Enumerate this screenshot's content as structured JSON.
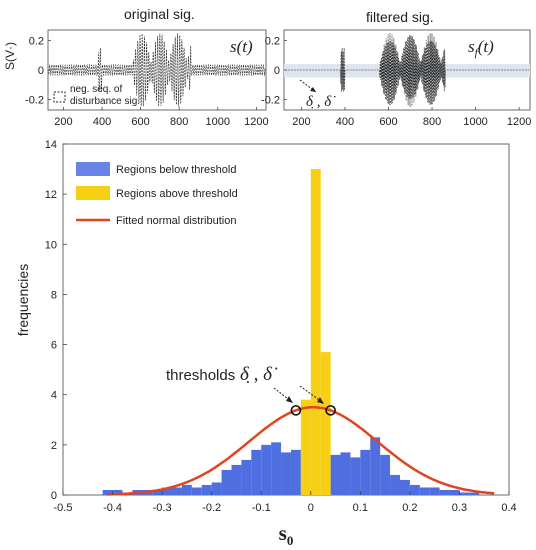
{
  "chart_data": [
    {
      "type": "line",
      "title": "original sig.",
      "ylabel": "S(V·)",
      "xlim": [
        120,
        1250
      ],
      "ylim": [
        -0.27,
        0.27
      ],
      "x_ticks": [
        200,
        400,
        600,
        800,
        1000,
        1200
      ],
      "y_ticks": [
        0.2,
        0,
        -0.2
      ],
      "y_tick_labels": [
        "0.2",
        "0",
        "-0.2"
      ],
      "signal_label": "s(t)",
      "legend": "neg. seq. of disturbance sig."
    },
    {
      "type": "line",
      "title": "filtered sig.",
      "xlim": [
        120,
        1250
      ],
      "ylim": [
        -0.27,
        0.27
      ],
      "x_ticks": [
        200,
        400,
        600,
        800,
        1000,
        1200
      ],
      "y_ticks": [
        0.2,
        0,
        -0.2
      ],
      "y_tick_labels": [
        "0.2",
        "0",
        "-0.2"
      ],
      "signal_label": "s_f(t)",
      "band": [
        -0.05,
        0.04
      ],
      "annotation": "δ̣ , δ̇"
    },
    {
      "type": "bar",
      "xlabel": "s₀",
      "ylabel": "frequencies",
      "xlim": [
        -0.5,
        0.4
      ],
      "ylim": [
        0,
        14
      ],
      "x_ticks": [
        -0.5,
        -0.4,
        -0.3,
        -0.2,
        -0.1,
        0,
        0.1,
        0.2,
        0.3,
        0.4
      ],
      "x_tick_labels": [
        "-0.5",
        "-0.4",
        "-0.3",
        "-0.2",
        "-0.1",
        "0",
        "0.1",
        "0.2",
        "0.3",
        "0.4"
      ],
      "y_ticks": [
        0,
        2,
        4,
        6,
        8,
        10,
        12,
        14
      ],
      "bin_width": 0.02,
      "series": [
        {
          "name": "Regions below threshold",
          "color": "#4f6fe0",
          "bins_left": [
            -0.42,
            -0.4,
            -0.38,
            -0.36,
            -0.34,
            -0.32,
            -0.3,
            -0.28,
            -0.26,
            -0.24,
            -0.22,
            -0.2,
            -0.18,
            -0.16,
            -0.14,
            -0.12,
            -0.1,
            -0.08,
            -0.06,
            -0.04,
            0.04,
            0.06,
            0.08,
            0.1,
            0.12,
            0.14,
            0.16,
            0.18,
            0.2,
            0.22,
            0.24,
            0.26,
            0.28,
            0.3,
            0.32
          ],
          "values": [
            0.2,
            0.2,
            0.1,
            0.2,
            0.2,
            0.2,
            0.3,
            0.3,
            0.4,
            0.3,
            0.4,
            0.5,
            1.0,
            1.2,
            1.4,
            1.8,
            2.0,
            2.1,
            1.7,
            1.8,
            1.6,
            1.7,
            1.5,
            1.8,
            2.3,
            1.6,
            0.8,
            0.6,
            0.4,
            0.3,
            0.3,
            0.2,
            0.2,
            0.1,
            0.1
          ]
        },
        {
          "name": "Regions above threshold",
          "color": "#f7cf14",
          "bins_left": [
            -0.02,
            0.0,
            0.02
          ],
          "values": [
            3.8,
            13.0,
            5.7
          ]
        }
      ],
      "fit": {
        "name": "Fitted normal distribution",
        "color": "#e0451f",
        "mean": 0.005,
        "sd": 0.13,
        "peak": 3.5,
        "range": [
          -0.41,
          0.37
        ]
      },
      "thresholds": [
        -0.03,
        0.04
      ],
      "annotation": "thresholds",
      "annotation_symbols": "δ̣ , δ̇"
    }
  ]
}
